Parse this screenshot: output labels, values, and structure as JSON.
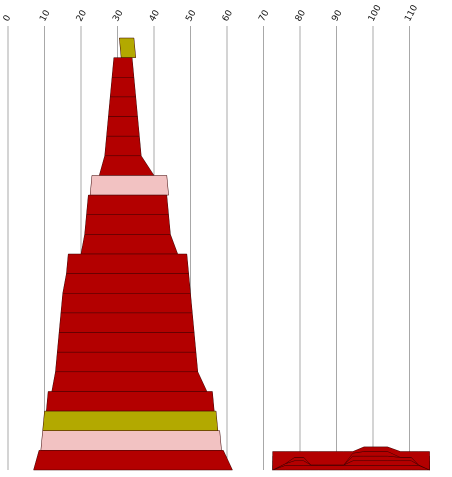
{
  "chart_data": {
    "type": "area",
    "orientation": "horizontal-profile",
    "x_axis": {
      "position": "top",
      "ticks": [
        0,
        10,
        20,
        30,
        40,
        50,
        60,
        70,
        80,
        90,
        100,
        110
      ],
      "range": [
        0,
        120
      ],
      "grid": true
    },
    "colors": {
      "red": "#b30000",
      "olive": "#b3a900",
      "pink": "#f2c2c2",
      "grid": "#a8a8a8"
    },
    "series": [
      {
        "shape": "main-profile",
        "layers": [
          {
            "left_top": 30.5,
            "left_bottom": 31.0,
            "right_top": 34.5,
            "right_bottom": 35.0,
            "color": "olive"
          },
          {
            "left_top": 29.0,
            "left_bottom": 28.5,
            "right_top": 34.0,
            "right_bottom": 34.5,
            "color": "red"
          },
          {
            "left_top": 28.5,
            "left_bottom": 28.0,
            "right_top": 34.5,
            "right_bottom": 35.0,
            "color": "red"
          },
          {
            "left_top": 28.0,
            "left_bottom": 27.5,
            "right_top": 35.0,
            "right_bottom": 35.5,
            "color": "red"
          },
          {
            "left_top": 27.5,
            "left_bottom": 27.0,
            "right_top": 35.5,
            "right_bottom": 36.0,
            "color": "red"
          },
          {
            "left_top": 27.0,
            "left_bottom": 26.5,
            "right_top": 36.0,
            "right_bottom": 36.5,
            "color": "red"
          },
          {
            "left_top": 26.5,
            "left_bottom": 25.0,
            "right_top": 36.5,
            "right_bottom": 40.0,
            "color": "red"
          },
          {
            "left_top": 23.0,
            "left_bottom": 22.5,
            "right_top": 43.5,
            "right_bottom": 44.0,
            "color": "pink"
          },
          {
            "left_top": 22.0,
            "left_bottom": 21.5,
            "right_top": 43.5,
            "right_bottom": 44.0,
            "color": "red"
          },
          {
            "left_top": 21.5,
            "left_bottom": 21.0,
            "right_top": 44.0,
            "right_bottom": 44.5,
            "color": "red"
          },
          {
            "left_top": 21.0,
            "left_bottom": 20.0,
            "right_top": 44.5,
            "right_bottom": 46.5,
            "color": "red"
          },
          {
            "left_top": 16.5,
            "left_bottom": 16.0,
            "right_top": 49.0,
            "right_bottom": 49.5,
            "color": "red"
          },
          {
            "left_top": 16.0,
            "left_bottom": 15.0,
            "right_top": 49.5,
            "right_bottom": 50.0,
            "color": "red"
          },
          {
            "left_top": 15.0,
            "left_bottom": 14.5,
            "right_top": 50.0,
            "right_bottom": 50.5,
            "color": "red"
          },
          {
            "left_top": 14.5,
            "left_bottom": 14.0,
            "right_top": 50.5,
            "right_bottom": 51.0,
            "color": "red"
          },
          {
            "left_top": 14.0,
            "left_bottom": 13.5,
            "right_top": 51.0,
            "right_bottom": 51.5,
            "color": "red"
          },
          {
            "left_top": 13.5,
            "left_bottom": 13.0,
            "right_top": 51.5,
            "right_bottom": 52.0,
            "color": "red"
          },
          {
            "left_top": 13.0,
            "left_bottom": 12.0,
            "right_top": 52.0,
            "right_bottom": 54.5,
            "color": "red"
          },
          {
            "left_top": 11.0,
            "left_bottom": 10.5,
            "right_top": 56.0,
            "right_bottom": 56.5,
            "color": "red"
          },
          {
            "left_top": 10.0,
            "left_bottom": 9.5,
            "right_top": 57.0,
            "right_bottom": 57.5,
            "color": "olive"
          },
          {
            "left_top": 9.5,
            "left_bottom": 9.0,
            "right_top": 58.0,
            "right_bottom": 58.5,
            "color": "pink"
          },
          {
            "left_top": 8.5,
            "left_bottom": 7.0,
            "right_top": 59.0,
            "right_bottom": 61.5,
            "color": "red"
          }
        ]
      },
      {
        "shape": "lower-profile",
        "baseline": 0,
        "points": [
          {
            "x": 72.5,
            "h": 0.0
          },
          {
            "x": 76.0,
            "h": 1.5
          },
          {
            "x": 78.5,
            "h": 3.0
          },
          {
            "x": 81.0,
            "h": 3.0
          },
          {
            "x": 83.0,
            "h": 1.2
          },
          {
            "x": 85.0,
            "h": 1.2
          },
          {
            "x": 92.0,
            "h": 1.2
          },
          {
            "x": 94.5,
            "h": 4.0
          },
          {
            "x": 97.5,
            "h": 5.5
          },
          {
            "x": 104.0,
            "h": 5.5
          },
          {
            "x": 107.5,
            "h": 3.0
          },
          {
            "x": 110.5,
            "h": 3.0
          },
          {
            "x": 112.5,
            "h": 1.2
          },
          {
            "x": 115.5,
            "h": 0.0
          }
        ],
        "bands": 5,
        "color": "red"
      }
    ]
  }
}
